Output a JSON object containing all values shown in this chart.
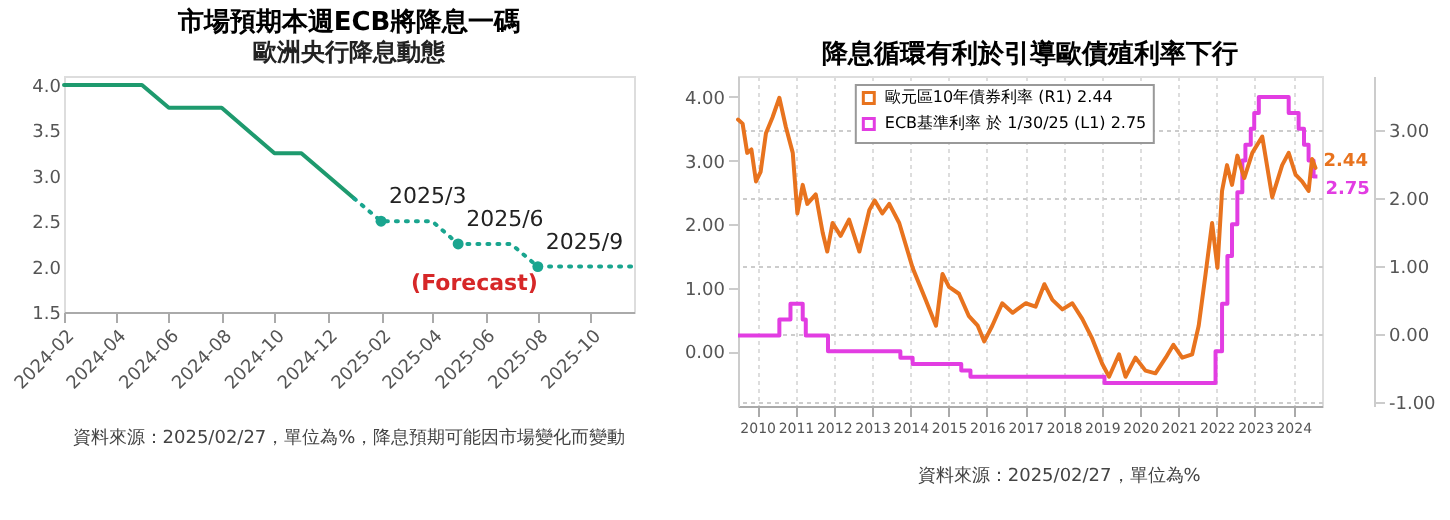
{
  "chart_data": [
    {
      "type": "line",
      "title": "市場預期本週ECB將降息一碼",
      "subtitle": "歐洲央行降息動態",
      "xlim": [
        "2024-02",
        "2025-11-20"
      ],
      "xticks": [
        {
          "value": "2024-02",
          "label": "2024-02"
        },
        {
          "value": "2024-04",
          "label": "2024-04"
        },
        {
          "value": "2024-06",
          "label": "2024-06"
        },
        {
          "value": "2024-08",
          "label": "2024-08"
        },
        {
          "value": "2024-10",
          "label": "2024-10"
        },
        {
          "value": "2024-12",
          "label": "2024-12"
        },
        {
          "value": "2025-02",
          "label": "2025-02"
        },
        {
          "value": "2025-04",
          "label": "2025-04"
        },
        {
          "value": "2025-06",
          "label": "2025-06"
        },
        {
          "value": "2025-08",
          "label": "2025-08"
        },
        {
          "value": "2025-10",
          "label": "2025-10"
        }
      ],
      "ylim": [
        1.5,
        4.1
      ],
      "yticks": [
        {
          "value": 1.5,
          "label": "1.5"
        },
        {
          "value": 2,
          "label": "2.0"
        },
        {
          "value": 2.5,
          "label": "2.5"
        },
        {
          "value": 3,
          "label": "3.0"
        },
        {
          "value": 3.5,
          "label": "3.5"
        },
        {
          "value": 4,
          "label": "4.0"
        }
      ],
      "series": [
        {
          "color": "#1e9a6e",
          "line_style": "solid",
          "x": [
            "2024-02",
            "2024-05",
            "2024-06",
            "2024-08",
            "2024-10",
            "2024-11",
            "2025-01"
          ],
          "values": [
            4,
            4,
            3.75,
            3.75,
            3.25,
            3.25,
            2.75
          ]
        },
        {
          "color": "#1aa58f",
          "line_style": "dotted",
          "x": [
            "2025-01",
            "2025-02",
            "2025-04",
            "2025-05",
            "2025-07",
            "2025-08",
            "2025-11-20"
          ],
          "values": [
            2.75,
            2.5,
            2.5,
            2.25,
            2.25,
            2,
            2
          ]
        },
        {
          "type": "scatter",
          "marker": "circle",
          "color": "#1aa58f",
          "x": [
            "2025-02",
            "2025-05",
            "2025-08"
          ],
          "values": [
            2.5,
            2.25,
            2
          ]
        }
      ],
      "annotations": [
        {
          "text": "2025/3",
          "x": "2025-02",
          "y": 2.5
        },
        {
          "text": "2025/6",
          "x": "2025-05",
          "y": 2.25
        },
        {
          "text": "2025/9",
          "x": "2025-08",
          "y": 2
        },
        "(Forecast)",
        "資料來源：2025/02/27，單位為%，降息預期可能因市場變化而變動"
      ]
    },
    {
      "type": "line",
      "title": "降息循環有利於引導歐債殖利率下行",
      "grid": true,
      "legend": "top",
      "xlim": [
        2010,
        2025.25
      ],
      "xticks": [
        {
          "value": 2010.5,
          "label": "2010"
        },
        {
          "value": 2011.5,
          "label": "2011"
        },
        {
          "value": 2012.5,
          "label": "2012"
        },
        {
          "value": 2013.5,
          "label": "2013"
        },
        {
          "value": 2014.5,
          "label": "2014"
        },
        {
          "value": 2015.5,
          "label": "2015"
        },
        {
          "value": 2016.5,
          "label": "2016"
        },
        {
          "value": 2017.5,
          "label": "2017"
        },
        {
          "value": 2018.5,
          "label": "2018"
        },
        {
          "value": 2019.5,
          "label": "2019"
        },
        {
          "value": 2020.5,
          "label": "2020"
        },
        {
          "value": 2021.5,
          "label": "2021"
        },
        {
          "value": 2022.5,
          "label": "2022"
        },
        {
          "value": 2023.5,
          "label": "2023"
        },
        {
          "value": 2024.5,
          "label": "2024"
        }
      ],
      "ylim": [
        -0.86,
        4.33
      ],
      "yticks": [
        {
          "value": 0,
          "label": "0.00"
        },
        {
          "value": 1,
          "label": "1.00"
        },
        {
          "value": 2,
          "label": "2.00"
        },
        {
          "value": 3,
          "label": "3.00"
        },
        {
          "value": 4,
          "label": "4.00"
        }
      ],
      "y2lim": [
        -1.06,
        3.79
      ],
      "y2ticks": [
        {
          "value": -1,
          "label": "-1.00"
        },
        {
          "value": 0,
          "label": "0.00"
        },
        {
          "value": 1,
          "label": "1.00"
        },
        {
          "value": 2,
          "label": "2.00"
        },
        {
          "value": 3,
          "label": "3.00"
        }
      ],
      "series": [
        {
          "name": "歐元區10年債券利率 (R1)  2.44",
          "axis": "y2",
          "color": "#e8731e",
          "x": [
            2010.0,
            2010.12,
            2010.24,
            2010.35,
            2010.47,
            2010.59,
            2010.73,
            2010.9,
            2011.08,
            2011.25,
            2011.43,
            2011.55,
            2011.69,
            2011.81,
            2012.03,
            2012.21,
            2012.33,
            2012.47,
            2012.68,
            2012.9,
            2013.17,
            2013.43,
            2013.57,
            2013.77,
            2013.95,
            2014.21,
            2014.56,
            2014.9,
            2015.17,
            2015.34,
            2015.51,
            2015.77,
            2016.03,
            2016.26,
            2016.43,
            2016.64,
            2016.9,
            2017.17,
            2017.51,
            2017.77,
            2018.0,
            2018.21,
            2018.47,
            2018.73,
            2018.99,
            2019.25,
            2019.51,
            2019.69,
            2019.95,
            2020.12,
            2020.38,
            2020.64,
            2020.9,
            2021.17,
            2021.37,
            2021.6,
            2021.86,
            2022.03,
            2022.21,
            2022.38,
            2022.52,
            2022.64,
            2022.77,
            2022.9,
            2023.04,
            2023.22,
            2023.43,
            2023.69,
            2023.95,
            2024.21,
            2024.38,
            2024.56,
            2024.73,
            2024.9,
            2024.99,
            2025.08
          ],
          "values": [
            3.15,
            3.09,
            2.66,
            2.71,
            2.24,
            2.38,
            2.95,
            3.18,
            3.47,
            3.04,
            2.66,
            1.77,
            2.19,
            1.91,
            2.05,
            1.49,
            1.21,
            1.63,
            1.44,
            1.68,
            1.21,
            1.82,
            1.96,
            1.77,
            1.91,
            1.63,
            0.97,
            0.5,
            0.12,
            0.88,
            0.69,
            0.59,
            0.26,
            0.12,
            -0.11,
            0.12,
            0.45,
            0.31,
            0.45,
            0.4,
            0.73,
            0.5,
            0.36,
            0.45,
            0.22,
            -0.07,
            -0.44,
            -0.63,
            -0.3,
            -0.63,
            -0.35,
            -0.54,
            -0.58,
            -0.35,
            -0.16,
            -0.35,
            -0.3,
            0.12,
            0.88,
            1.63,
            0.97,
            2.1,
            2.48,
            2.19,
            2.62,
            2.29,
            2.66,
            2.9,
            2.01,
            2.48,
            2.66,
            2.34,
            2.24,
            2.1,
            2.57,
            2.44
          ],
          "value_labels": [
            null,
            null,
            null,
            null,
            null,
            null,
            null,
            null,
            null,
            null,
            null,
            null,
            null,
            null,
            null,
            null,
            null,
            null,
            null,
            null,
            null,
            null,
            null,
            null,
            null,
            null,
            null,
            null,
            null,
            null,
            null,
            null,
            null,
            null,
            null,
            null,
            null,
            null,
            null,
            null,
            null,
            null,
            null,
            null,
            null,
            null,
            null,
            null,
            null,
            null,
            null,
            null,
            null,
            null,
            null,
            null,
            null,
            null,
            null,
            null,
            null,
            null,
            null,
            null,
            null,
            null,
            null,
            null,
            null,
            null,
            null,
            null,
            null,
            null,
            null,
            "2.44"
          ]
        },
        {
          "name": "ECB基準利率 於 1/30/25 (L1) 2.75",
          "type": "step",
          "axis": "y",
          "color": "#e23de2",
          "x": [
            2010.0,
            2011.08,
            2011.37,
            2011.69,
            2011.77,
            2012.35,
            2014.24,
            2014.56,
            2015.83,
            2016.07,
            2019.57,
            2022.47,
            2022.64,
            2022.78,
            2022.9,
            2023.04,
            2023.17,
            2023.25,
            2023.39,
            2023.48,
            2023.6,
            2024.38,
            2024.64,
            2024.78,
            2024.9,
            2025.03,
            2025.13
          ],
          "values": [
            0.25,
            0.5,
            0.75,
            0.5,
            0.25,
            0,
            -0.1,
            -0.2,
            -0.3,
            -0.4,
            -0.5,
            0,
            0.75,
            1.5,
            2,
            2.5,
            3,
            3.25,
            3.5,
            3.75,
            4,
            3.75,
            3.5,
            3.25,
            3,
            2.75,
            2.75
          ],
          "value_labels": [
            null,
            null,
            null,
            null,
            null,
            null,
            null,
            null,
            null,
            null,
            null,
            null,
            null,
            null,
            null,
            null,
            null,
            null,
            null,
            null,
            null,
            null,
            null,
            null,
            null,
            null,
            "2.75"
          ]
        }
      ],
      "annotations": [
        "資料來源：2025/02/27，單位為%"
      ]
    }
  ]
}
